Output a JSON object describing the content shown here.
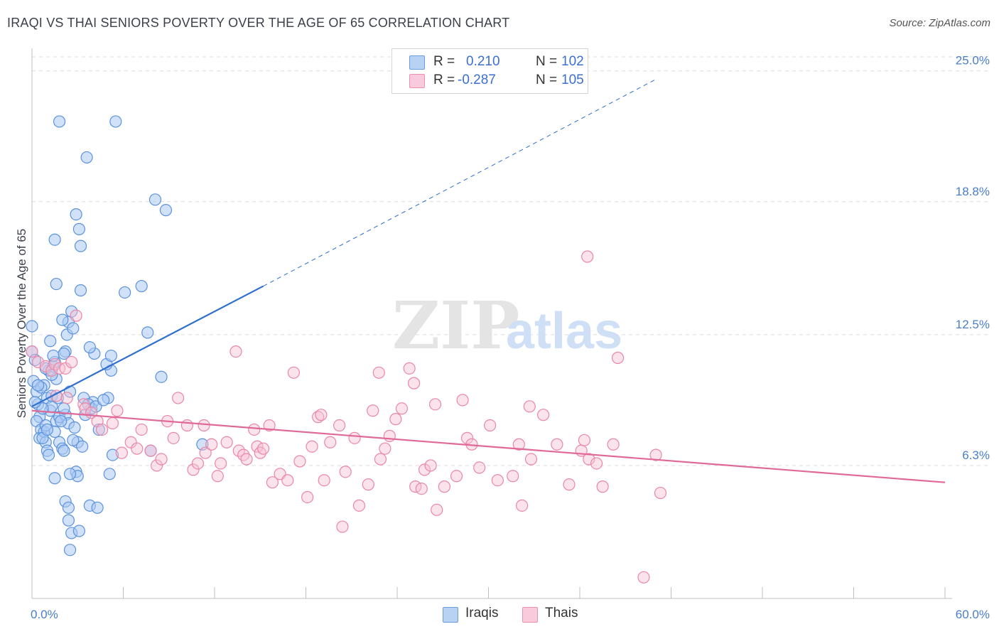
{
  "header": {
    "title": "IRAQI VS THAI SENIORS POVERTY OVER THE AGE OF 65 CORRELATION CHART",
    "source": "Source: ZipAtlas.com"
  },
  "legend": {
    "rows": [
      {
        "r_label": "R =",
        "r_value": "0.210",
        "n_label": "N =",
        "n_value": "102"
      },
      {
        "r_label": "R =",
        "r_value": "-0.287",
        "n_label": "N =",
        "n_value": "105"
      }
    ],
    "bottom": [
      {
        "label": "Iraqis"
      },
      {
        "label": "Thais"
      }
    ]
  },
  "watermark": {
    "zip": "ZIP",
    "atlas": "atlas"
  },
  "colors": {
    "iraqis_fill": "#a9c8f2",
    "iraqis_stroke": "#5b92dd",
    "iraqis_line": "#2e6fcf",
    "thais_fill": "#f7c0d2",
    "thais_stroke": "#ea86a8",
    "thais_line": "#e06a97",
    "tick_text": "#4a7fc8",
    "grid": "#dcdcdc"
  },
  "chart_data": {
    "type": "scatter",
    "ylabel": "Seniors Poverty Over the Age of 65",
    "xlim": [
      0,
      60
    ],
    "ylim": [
      0,
      26
    ],
    "x_tick_labels": [
      {
        "value": 0,
        "label": "0.0%"
      },
      {
        "value": 60,
        "label": "60.0%"
      }
    ],
    "y_tick_labels": [
      {
        "value": 6.3,
        "label": "6.3%"
      },
      {
        "value": 12.5,
        "label": "12.5%"
      },
      {
        "value": 18.8,
        "label": "18.8%"
      },
      {
        "value": 25.0,
        "label": "25.0%"
      }
    ],
    "grid": "horizontal dashed",
    "legend_position": "top-center",
    "series": [
      {
        "name": "Iraqis",
        "r": 0.21,
        "n": 102,
        "trend": {
          "x0": 0.0,
          "y0": 9.1,
          "x1": 15.2,
          "y1": 14.8,
          "dashed_to_x": 41.0,
          "dashed_to_y": 24.6
        },
        "points": [
          [
            0.0,
            12.9
          ],
          [
            0.0,
            11.7
          ],
          [
            0.2,
            11.3
          ],
          [
            0.1,
            10.3
          ],
          [
            0.3,
            9.8
          ],
          [
            0.4,
            9.2
          ],
          [
            0.5,
            8.6
          ],
          [
            0.3,
            8.4
          ],
          [
            0.6,
            8.0
          ],
          [
            0.5,
            7.6
          ],
          [
            0.8,
            7.9
          ],
          [
            0.9,
            7.4
          ],
          [
            1.0,
            7.0
          ],
          [
            1.1,
            6.8
          ],
          [
            0.9,
            8.2
          ],
          [
            1.2,
            8.9
          ],
          [
            1.0,
            9.5
          ],
          [
            1.3,
            9.1
          ],
          [
            0.8,
            10.1
          ],
          [
            1.1,
            10.8
          ],
          [
            1.2,
            12.2
          ],
          [
            1.4,
            11.0
          ],
          [
            1.5,
            11.2
          ],
          [
            1.6,
            10.4
          ],
          [
            1.3,
            9.6
          ],
          [
            1.7,
            9.5
          ],
          [
            1.6,
            8.4
          ],
          [
            1.5,
            7.9
          ],
          [
            1.8,
            7.4
          ],
          [
            2.0,
            7.1
          ],
          [
            2.1,
            7.0
          ],
          [
            1.8,
            8.6
          ],
          [
            2.2,
            8.7
          ],
          [
            2.4,
            8.3
          ],
          [
            2.5,
            9.8
          ],
          [
            2.2,
            11.7
          ],
          [
            2.1,
            11.6
          ],
          [
            2.3,
            12.5
          ],
          [
            2.4,
            13.1
          ],
          [
            2.0,
            13.2
          ],
          [
            2.6,
            13.6
          ],
          [
            2.7,
            12.8
          ],
          [
            2.8,
            8.1
          ],
          [
            2.9,
            6.0
          ],
          [
            3.0,
            5.8
          ],
          [
            2.5,
            5.9
          ],
          [
            1.5,
            5.7
          ],
          [
            2.2,
            4.6
          ],
          [
            2.4,
            4.3
          ],
          [
            2.4,
            3.7
          ],
          [
            2.6,
            3.1
          ],
          [
            3.1,
            3.2
          ],
          [
            2.5,
            2.3
          ],
          [
            1.6,
            14.9
          ],
          [
            3.2,
            14.6
          ],
          [
            1.5,
            17.0
          ],
          [
            3.1,
            17.5
          ],
          [
            2.9,
            18.2
          ],
          [
            3.2,
            16.7
          ],
          [
            3.6,
            20.9
          ],
          [
            1.8,
            22.6
          ],
          [
            5.5,
            22.6
          ],
          [
            8.1,
            18.9
          ],
          [
            8.8,
            18.4
          ],
          [
            7.2,
            14.8
          ],
          [
            6.1,
            14.5
          ],
          [
            7.6,
            12.6
          ],
          [
            8.5,
            10.5
          ],
          [
            7.8,
            7.0
          ],
          [
            5.3,
            6.8
          ],
          [
            5.1,
            5.9
          ],
          [
            3.8,
            4.4
          ],
          [
            4.3,
            4.3
          ],
          [
            5.0,
            9.5
          ],
          [
            5.2,
            10.8
          ],
          [
            4.9,
            11.1
          ],
          [
            5.2,
            11.5
          ],
          [
            4.1,
            11.6
          ],
          [
            3.8,
            11.9
          ],
          [
            4.0,
            9.3
          ],
          [
            3.5,
            8.7
          ],
          [
            3.9,
            9.0
          ],
          [
            3.4,
            9.5
          ],
          [
            3.7,
            9.2
          ],
          [
            4.2,
            9.1
          ],
          [
            4.7,
            9.4
          ],
          [
            4.4,
            8.0
          ],
          [
            3.0,
            7.4
          ],
          [
            2.7,
            7.5
          ],
          [
            3.3,
            7.2
          ],
          [
            11.2,
            7.3
          ],
          [
            0.7,
            9.0
          ],
          [
            0.6,
            10.0
          ],
          [
            0.4,
            10.1
          ],
          [
            0.2,
            9.3
          ],
          [
            0.7,
            7.6
          ],
          [
            1.0,
            8.0
          ],
          [
            1.9,
            8.4
          ],
          [
            2.1,
            9.0
          ],
          [
            1.4,
            11.5
          ],
          [
            0.9,
            10.9
          ],
          [
            1.3,
            10.6
          ]
        ]
      },
      {
        "name": "Thais",
        "r": -0.287,
        "n": 105,
        "trend": {
          "x0": 0.0,
          "y0": 8.9,
          "x1": 60.0,
          "y1": 5.5
        },
        "points": [
          [
            0.0,
            11.7
          ],
          [
            0.4,
            11.2
          ],
          [
            0.9,
            11.0
          ],
          [
            1.3,
            10.8
          ],
          [
            1.5,
            11.1
          ],
          [
            1.8,
            10.9
          ],
          [
            2.2,
            10.9
          ],
          [
            2.6,
            11.2
          ],
          [
            2.9,
            13.4
          ],
          [
            1.6,
            9.6
          ],
          [
            2.3,
            9.5
          ],
          [
            3.4,
            9.2
          ],
          [
            3.5,
            9.0
          ],
          [
            3.9,
            8.8
          ],
          [
            4.3,
            8.4
          ],
          [
            4.6,
            8.0
          ],
          [
            5.3,
            8.3
          ],
          [
            5.6,
            8.9
          ],
          [
            5.9,
            6.9
          ],
          [
            6.5,
            7.4
          ],
          [
            6.9,
            7.1
          ],
          [
            7.2,
            8.0
          ],
          [
            7.8,
            7.0
          ],
          [
            8.2,
            6.3
          ],
          [
            8.9,
            8.4
          ],
          [
            8.5,
            6.6
          ],
          [
            9.3,
            7.6
          ],
          [
            9.6,
            9.5
          ],
          [
            10.2,
            8.2
          ],
          [
            10.6,
            6.1
          ],
          [
            10.9,
            6.4
          ],
          [
            11.3,
            8.2
          ],
          [
            11.4,
            6.9
          ],
          [
            11.8,
            7.3
          ],
          [
            12.2,
            5.8
          ],
          [
            12.4,
            6.4
          ],
          [
            12.8,
            7.4
          ],
          [
            13.4,
            11.7
          ],
          [
            13.6,
            7.0
          ],
          [
            13.9,
            6.8
          ],
          [
            14.1,
            6.6
          ],
          [
            14.6,
            8.0
          ],
          [
            14.8,
            7.2
          ],
          [
            15.0,
            6.9
          ],
          [
            15.2,
            7.1
          ],
          [
            15.6,
            8.2
          ],
          [
            15.8,
            5.5
          ],
          [
            16.3,
            5.9
          ],
          [
            16.8,
            5.6
          ],
          [
            17.2,
            10.7
          ],
          [
            17.6,
            6.5
          ],
          [
            18.1,
            4.8
          ],
          [
            18.4,
            7.2
          ],
          [
            18.8,
            8.6
          ],
          [
            19.0,
            8.7
          ],
          [
            19.2,
            5.6
          ],
          [
            19.6,
            7.4
          ],
          [
            20.2,
            8.2
          ],
          [
            20.6,
            6.0
          ],
          [
            20.4,
            3.4
          ],
          [
            21.2,
            7.6
          ],
          [
            21.5,
            4.4
          ],
          [
            22.1,
            5.4
          ],
          [
            22.4,
            8.9
          ],
          [
            22.8,
            10.7
          ],
          [
            22.9,
            6.6
          ],
          [
            23.2,
            7.1
          ],
          [
            23.5,
            7.7
          ],
          [
            23.9,
            8.5
          ],
          [
            24.3,
            9.0
          ],
          [
            24.8,
            10.9
          ],
          [
            25.1,
            10.2
          ],
          [
            25.2,
            5.3
          ],
          [
            25.6,
            5.2
          ],
          [
            25.8,
            6.1
          ],
          [
            26.2,
            6.3
          ],
          [
            26.5,
            9.2
          ],
          [
            27.1,
            5.3
          ],
          [
            27.9,
            5.8
          ],
          [
            28.3,
            9.4
          ],
          [
            28.6,
            7.6
          ],
          [
            28.9,
            7.3
          ],
          [
            29.4,
            6.2
          ],
          [
            30.1,
            8.2
          ],
          [
            30.6,
            5.6
          ],
          [
            31.6,
            5.8
          ],
          [
            32.0,
            7.3
          ],
          [
            32.7,
            9.1
          ],
          [
            32.8,
            6.6
          ],
          [
            33.6,
            8.7
          ],
          [
            34.5,
            7.3
          ],
          [
            35.3,
            5.4
          ],
          [
            36.1,
            7.0
          ],
          [
            36.3,
            7.5
          ],
          [
            36.6,
            6.6
          ],
          [
            37.1,
            6.4
          ],
          [
            37.5,
            5.3
          ],
          [
            38.2,
            7.3
          ],
          [
            38.5,
            11.4
          ],
          [
            41.3,
            5.0
          ],
          [
            41.0,
            6.8
          ],
          [
            40.2,
            1.0
          ],
          [
            36.5,
            16.2
          ],
          [
            32.2,
            4.4
          ],
          [
            26.6,
            4.2
          ]
        ]
      }
    ]
  }
}
